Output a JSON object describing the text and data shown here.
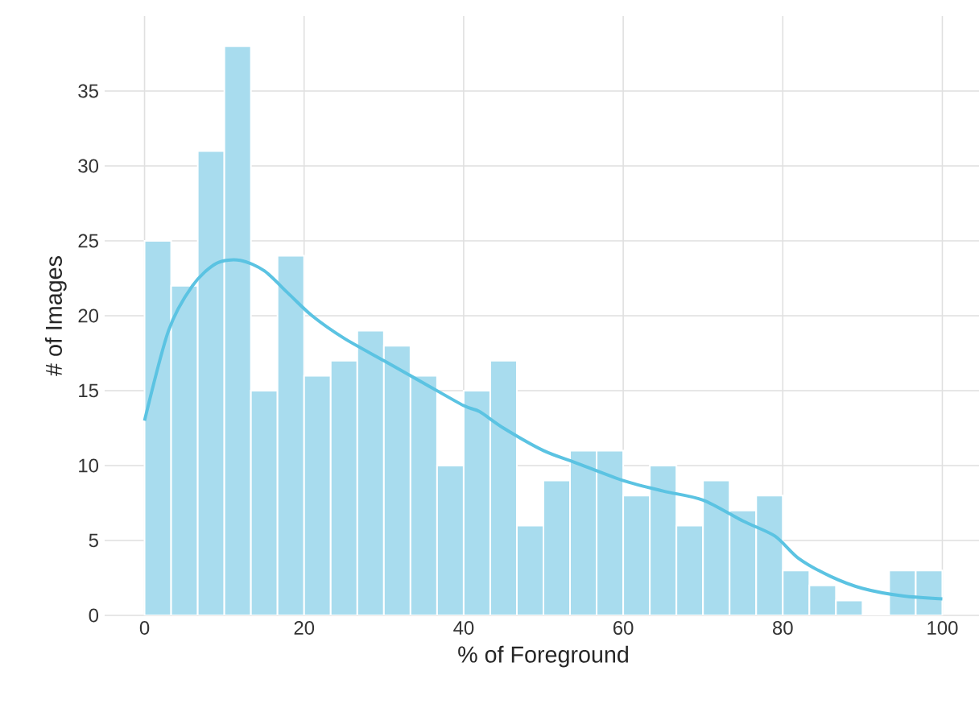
{
  "chart_data": {
    "type": "histogram",
    "xlabel": "% of Foreground",
    "ylabel": "# of Images",
    "bins": [
      0,
      3.333,
      6.667,
      10,
      13.333,
      16.667,
      20,
      23.333,
      26.667,
      30,
      33.333,
      36.667,
      40,
      43.333,
      46.667,
      50,
      53.333,
      56.667,
      60,
      63.333,
      66.667,
      70,
      73.333,
      76.667,
      80,
      83.333,
      86.667,
      90,
      93.333,
      96.667,
      100
    ],
    "values": [
      25,
      22,
      31,
      38,
      15,
      24,
      16,
      17,
      19,
      18,
      16,
      10,
      15,
      17,
      6,
      9,
      11,
      11,
      8,
      10,
      6,
      9,
      7,
      8,
      3,
      2,
      1,
      0,
      3,
      3
    ],
    "color": "#a8dcee",
    "series": [
      {
        "type": "line",
        "color": "#5bc3e2",
        "x": [
          0,
          3,
          6,
          9,
          12,
          15,
          18,
          21,
          25,
          30,
          35,
          40,
          42,
          45,
          50,
          54,
          60,
          65,
          70,
          75,
          79,
          82,
          86,
          90,
          95,
          100
        ],
        "values": [
          13,
          19,
          22,
          23.5,
          23.7,
          23,
          21.5,
          20,
          18.5,
          17,
          15.5,
          14,
          13.6,
          12.5,
          11,
          10.2,
          9,
          8.3,
          7.7,
          6.3,
          5.3,
          3.8,
          2.6,
          1.8,
          1.3,
          1.1
        ]
      }
    ],
    "xlim": [
      -5,
      105
    ],
    "ylim": [
      0,
      40
    ],
    "xticks": [
      0,
      20,
      40,
      60,
      80,
      100
    ],
    "yticks": [
      0,
      5,
      10,
      15,
      20,
      25,
      30,
      35
    ],
    "grid": true
  }
}
